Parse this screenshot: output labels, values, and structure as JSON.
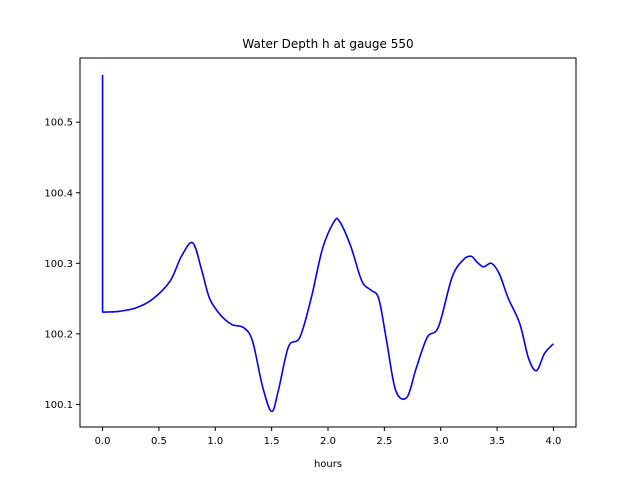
{
  "chart_data": {
    "type": "line",
    "title": "Water Depth h at gauge 550",
    "xlabel": "hours",
    "ylabel": "",
    "xlim": [
      -0.2,
      4.2
    ],
    "ylim": [
      100.068,
      100.591
    ],
    "xticks": [
      0.0,
      0.5,
      1.0,
      1.5,
      2.0,
      2.5,
      3.0,
      3.5,
      4.0
    ],
    "xtick_labels": [
      "0.0",
      "0.5",
      "1.0",
      "1.5",
      "2.0",
      "2.5",
      "3.0",
      "3.5",
      "4.0"
    ],
    "yticks": [
      100.1,
      100.2,
      100.3,
      100.4,
      100.5
    ],
    "ytick_labels": [
      "100.1",
      "100.2",
      "100.3",
      "100.4",
      "100.5"
    ],
    "grid": false,
    "legend": "none",
    "series": [
      {
        "color": "#0000ff",
        "x": [
          0.0,
          0.0,
          0.05,
          0.15,
          0.3,
          0.45,
          0.6,
          0.7,
          0.8,
          0.88,
          0.95,
          1.05,
          1.15,
          1.25,
          1.33,
          1.42,
          1.5,
          1.56,
          1.65,
          1.75,
          1.85,
          1.95,
          2.05,
          2.1,
          2.2,
          2.3,
          2.38,
          2.45,
          2.52,
          2.6,
          2.7,
          2.78,
          2.88,
          2.98,
          3.1,
          3.2,
          3.27,
          3.32,
          3.38,
          3.45,
          3.52,
          3.6,
          3.7,
          3.78,
          3.85,
          3.92,
          4.0
        ],
        "y": [
          100.567,
          100.231,
          100.231,
          100.232,
          100.237,
          100.25,
          100.275,
          100.31,
          100.329,
          100.29,
          100.25,
          100.226,
          100.213,
          100.209,
          100.19,
          100.125,
          100.09,
          100.12,
          100.182,
          100.195,
          100.25,
          100.32,
          100.358,
          100.36,
          100.325,
          100.275,
          100.262,
          100.25,
          100.19,
          100.12,
          100.11,
          100.15,
          100.195,
          100.21,
          100.28,
          100.305,
          100.31,
          100.302,
          100.295,
          100.3,
          100.285,
          100.25,
          100.215,
          100.165,
          100.148,
          100.172,
          100.186
        ]
      }
    ]
  }
}
